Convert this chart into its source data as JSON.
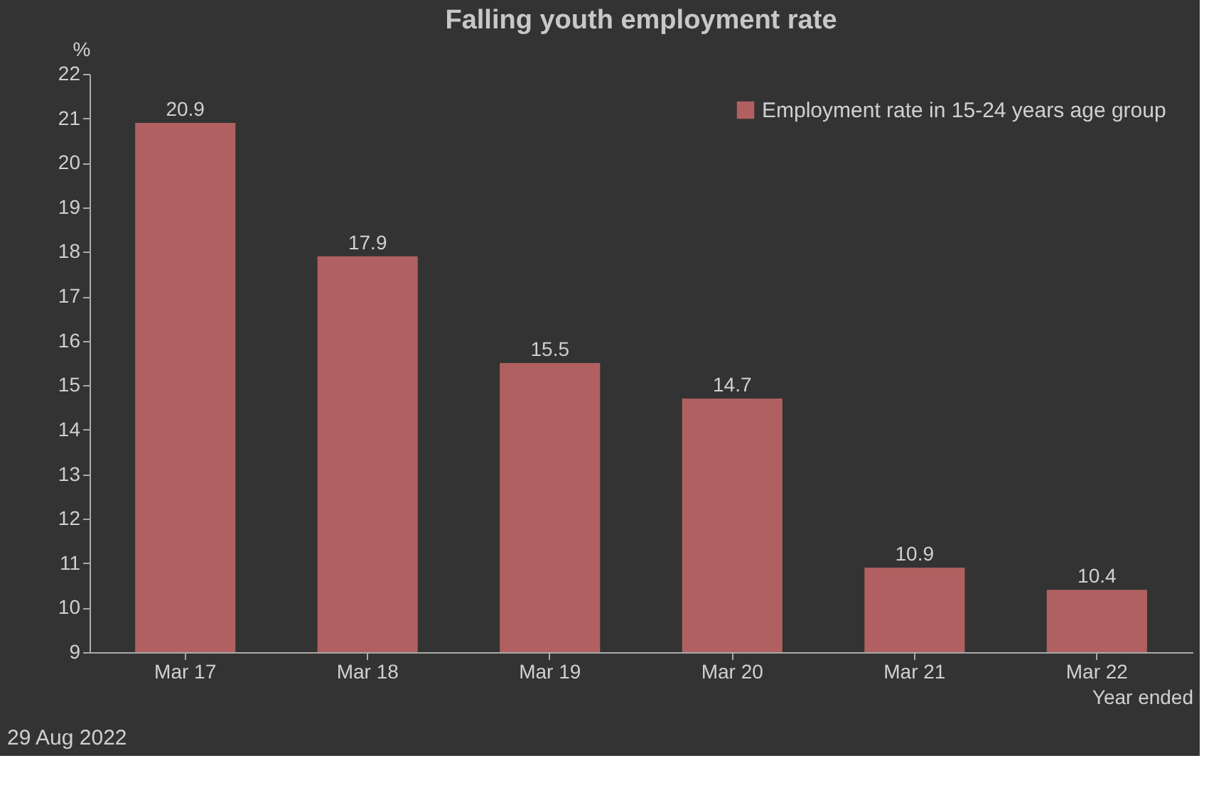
{
  "chart_data": {
    "type": "bar",
    "title": "Falling youth employment rate",
    "ylabel": "%",
    "xlabel": "Year ended",
    "categories": [
      "Mar 17",
      "Mar 18",
      "Mar 19",
      "Mar 20",
      "Mar 21",
      "Mar 22"
    ],
    "series": [
      {
        "name": "Employment rate in 15-24 years age group",
        "color": "#b06060",
        "values": [
          20.9,
          17.9,
          15.5,
          14.7,
          10.9,
          10.4
        ]
      }
    ],
    "ylim": [
      9,
      22
    ],
    "yticks": [
      9,
      10,
      11,
      12,
      13,
      14,
      15,
      16,
      17,
      18,
      19,
      20,
      21,
      22
    ],
    "data_labels": true,
    "legend": "top right",
    "grid": false,
    "annotations": [
      "29 Aug 2022"
    ]
  }
}
